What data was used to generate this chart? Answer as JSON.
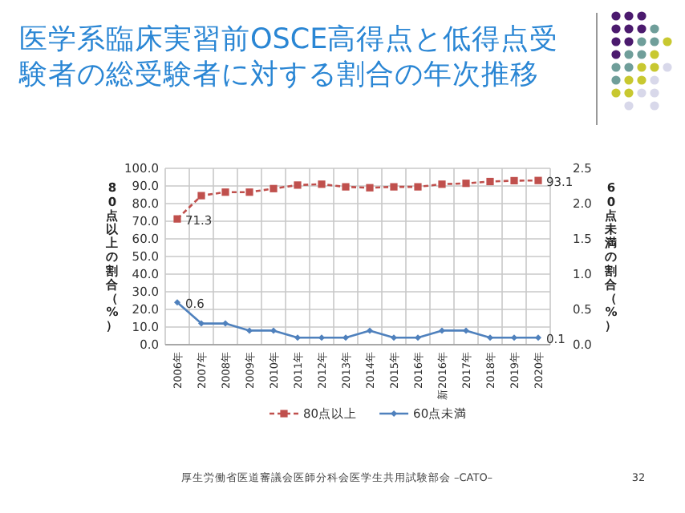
{
  "chart_data": {
    "type": "line",
    "title": "医学系臨床実習前OSCE高得点と低得点受験者の総受験者に対する割合の年次推移",
    "categories": [
      "2006年",
      "2007年",
      "2008年",
      "2009年",
      "2010年",
      "2011年",
      "2012年",
      "2013年",
      "2014年",
      "2015年",
      "2016年",
      "新2016年",
      "2017年",
      "2018年",
      "2019年",
      "2020年"
    ],
    "series": [
      {
        "name": "80点以上",
        "color": "#c0504d",
        "marker": "square",
        "line_style": "dashed",
        "values": [
          71.3,
          84.5,
          86.5,
          86.5,
          88.5,
          90.5,
          91,
          89.5,
          89,
          89.5,
          89.5,
          91,
          91.5,
          92.5,
          93,
          93.1
        ],
        "value_labels": [
          "71.3",
          null,
          null,
          null,
          null,
          null,
          null,
          null,
          null,
          null,
          null,
          null,
          null,
          null,
          null,
          "93.1"
        ]
      },
      {
        "name": "60点未満",
        "color": "#4f81bd",
        "marker": "diamond",
        "line_style": "solid",
        "axis": "y2",
        "values": [
          0.6,
          0.3,
          0.3,
          0.2,
          0.2,
          0.1,
          0.1,
          0.1,
          0.2,
          0.1,
          0.1,
          0.2,
          0.2,
          0.1,
          0.1,
          0.1
        ],
        "value_labels": [
          "0.6",
          null,
          null,
          null,
          null,
          null,
          null,
          null,
          null,
          null,
          null,
          null,
          null,
          null,
          null,
          "0.1"
        ]
      }
    ],
    "ylabel": "80点以上の割合（%）",
    "y2label": "60点未満の割合（%）",
    "ylim": [
      0,
      100
    ],
    "yticks": [
      {
        "value": 0,
        "label": "0.0"
      },
      {
        "value": 10,
        "label": "10.0"
      },
      {
        "value": 20,
        "label": "20.0"
      },
      {
        "value": 30,
        "label": "30.0"
      },
      {
        "value": 40,
        "label": "40.0"
      },
      {
        "value": 50,
        "label": "50.0"
      },
      {
        "value": 60,
        "label": "60.0"
      },
      {
        "value": 70,
        "label": "70.0"
      },
      {
        "value": 80,
        "label": "80.0"
      },
      {
        "value": 90,
        "label": "90.0"
      },
      {
        "value": 100,
        "label": "100.0"
      }
    ],
    "y2lim": [
      0,
      2.5
    ],
    "y2ticks": [
      {
        "value": 0,
        "label": "0.0"
      },
      {
        "value": 0.5,
        "label": "0.5"
      },
      {
        "value": 1,
        "label": "1.0"
      },
      {
        "value": 1.5,
        "label": "1.5"
      },
      {
        "value": 2,
        "label": "2.0"
      },
      {
        "value": 2.5,
        "label": "2.5"
      }
    ],
    "grid": true,
    "legend": "bottom",
    "annotations": [
      "厚生労働省医道審議会医師分科会医学生共用試験部会 –CATO–",
      "32"
    ]
  }
}
